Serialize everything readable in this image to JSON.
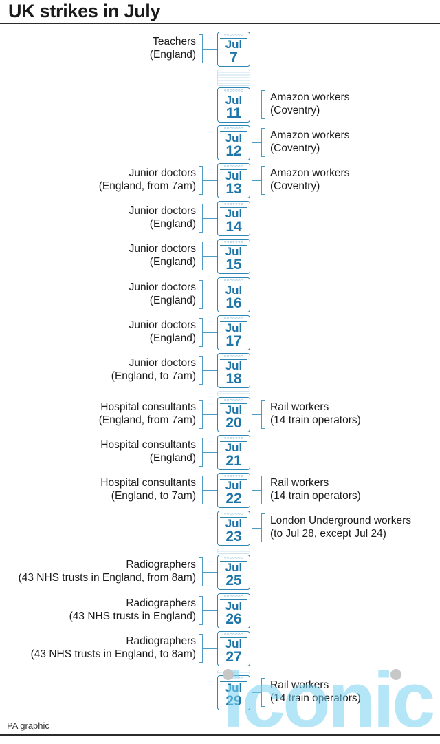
{
  "title": "UK strikes in July",
  "footer": "PA graphic",
  "watermark": "iconic",
  "accent_color": "#2e86b5",
  "entries": [
    {
      "month": "Jul",
      "day": "7",
      "left": [
        "Teachers",
        "(England)"
      ],
      "right": []
    },
    {
      "month": "Jul",
      "day": "11",
      "left": [],
      "right": [
        "Amazon workers",
        "(Coventry)"
      ]
    },
    {
      "month": "Jul",
      "day": "12",
      "left": [],
      "right": [
        "Amazon workers",
        "(Coventry)"
      ]
    },
    {
      "month": "Jul",
      "day": "13",
      "left": [
        "Junior doctors",
        "(England, from 7am)"
      ],
      "right": [
        "Amazon workers",
        "(Coventry)"
      ]
    },
    {
      "month": "Jul",
      "day": "14",
      "left": [
        "Junior doctors",
        "(England)"
      ],
      "right": []
    },
    {
      "month": "Jul",
      "day": "15",
      "left": [
        "Junior doctors",
        "(England)"
      ],
      "right": []
    },
    {
      "month": "Jul",
      "day": "16",
      "left": [
        "Junior doctors",
        "(England)"
      ],
      "right": []
    },
    {
      "month": "Jul",
      "day": "17",
      "left": [
        "Junior doctors",
        "(England)"
      ],
      "right": []
    },
    {
      "month": "Jul",
      "day": "18",
      "left": [
        "Junior doctors",
        "(England, to 7am)"
      ],
      "right": []
    },
    {
      "month": "Jul",
      "day": "20",
      "left": [
        "Hospital consultants",
        "(England, from 7am)"
      ],
      "right": [
        "Rail workers",
        "(14 train operators)"
      ]
    },
    {
      "month": "Jul",
      "day": "21",
      "left": [
        "Hospital consultants",
        "(England)"
      ],
      "right": []
    },
    {
      "month": "Jul",
      "day": "22",
      "left": [
        "Hospital consultants",
        "(England, to 7am)"
      ],
      "right": [
        "Rail workers",
        "(14 train operators)"
      ]
    },
    {
      "month": "Jul",
      "day": "23",
      "left": [],
      "right": [
        "London Underground workers",
        "(to Jul 28, except Jul 24)"
      ]
    },
    {
      "month": "Jul",
      "day": "25",
      "left": [
        "Radiographers",
        "(43 NHS trusts in England, from 8am)"
      ],
      "right": []
    },
    {
      "month": "Jul",
      "day": "26",
      "left": [
        "Radiographers",
        "(43 NHS trusts in England)"
      ],
      "right": []
    },
    {
      "month": "Jul",
      "day": "27",
      "left": [
        "Radiographers",
        "(43 NHS trusts in England, to 8am)"
      ],
      "right": []
    },
    {
      "month": "Jul",
      "day": "29",
      "left": [],
      "right": [
        "Rail workers",
        "(14 train operators)"
      ]
    }
  ]
}
